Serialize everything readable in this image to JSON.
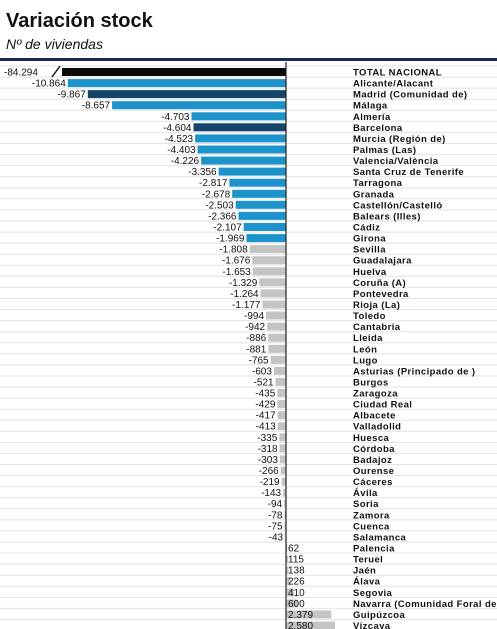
{
  "chart_data": {
    "type": "bar",
    "orientation": "horizontal",
    "title": "Variación stock",
    "subtitle": "Nº de viviendas",
    "categories": [
      "TOTAL NACIONAL",
      "Alicante/Alacant",
      "Madrid (Comunidad de)",
      "Málaga",
      "Almería",
      "Barcelona",
      "Murcia (Región de)",
      "Palmas (Las)",
      "Valencia/València",
      "Santa Cruz de Tenerife",
      "Tarragona",
      "Granada",
      "Castellón/Castelló",
      "Balears (Illes)",
      "Cádiz",
      "Girona",
      "Sevilla",
      "Guadalajara",
      "Huelva",
      "Coruña (A)",
      "Pontevedra",
      "Rioja (La)",
      "Toledo",
      "Cantabria",
      "Lleida",
      "León",
      "Lugo",
      "Asturias (Principado de )",
      "Burgos",
      "Zaragoza",
      "Ciudad Real",
      "Albacete",
      "Valladolid",
      "Huesca",
      "Córdoba",
      "Badajoz",
      "Ourense",
      "Cáceres",
      "Ávila",
      "Soria",
      "Zamora",
      "Cuenca",
      "Salamanca",
      "Palencia",
      "Teruel",
      "Jaén",
      "Álava",
      "Segovia",
      "Navarra (Comunidad Foral de)",
      "Guipúzcoa",
      "Vizcaya"
    ],
    "value_labels": [
      "-84.294",
      "-10.864",
      "-9.867",
      "-8.657",
      "-4.703",
      "-4.604",
      "-4.523",
      "-4.403",
      "-4.226",
      "-3.356",
      "-2.817",
      "-2.678",
      "-2.503",
      "-2.366",
      "-2.107",
      "-1.969",
      "-1.808",
      "-1.676",
      "-1.653",
      "-1.329",
      "-1.264",
      "-1.177",
      "-994",
      "-942",
      "-886",
      "-881",
      "-765",
      "-603",
      "-521",
      "-435",
      "-429",
      "-417",
      "-413",
      "-335",
      "-318",
      "-303",
      "-266",
      "-219",
      "-143",
      "-94",
      "-78",
      "-75",
      "-43",
      "62",
      "115",
      "138",
      "226",
      "410",
      "600",
      "2.379",
      "2.580"
    ],
    "values": [
      -84294,
      -10864,
      -9867,
      -8657,
      -4703,
      -4604,
      -4523,
      -4403,
      -4226,
      -3356,
      -2817,
      -2678,
      -2503,
      -2366,
      -2107,
      -1969,
      -1808,
      -1676,
      -1653,
      -1329,
      -1264,
      -1177,
      -994,
      -942,
      -886,
      -881,
      -765,
      -603,
      -521,
      -435,
      -429,
      -417,
      -413,
      -335,
      -318,
      -303,
      -266,
      -219,
      -143,
      -94,
      -78,
      -75,
      -43,
      62,
      115,
      138,
      226,
      410,
      600,
      2379,
      2580
    ],
    "axis_break": {
      "category": "TOTAL NACIONAL"
    },
    "xlim": [
      -11500,
      3000
    ],
    "colors": {
      "total": "#0a0a0a",
      "dark": "#16456b",
      "medium": "#1d93cc",
      "light": "#c4c4c4",
      "axis": "#222222",
      "rule": "#1b2a55"
    },
    "color_groups": [
      "total",
      "medium",
      "dark",
      "medium",
      "medium",
      "dark",
      "medium",
      "medium",
      "medium",
      "medium",
      "medium",
      "medium",
      "medium",
      "medium",
      "medium",
      "medium",
      "light",
      "light",
      "light",
      "light",
      "light",
      "light",
      "light",
      "light",
      "light",
      "light",
      "light",
      "light",
      "light",
      "light",
      "light",
      "light",
      "light",
      "light",
      "light",
      "light",
      "light",
      "light",
      "light",
      "light",
      "light",
      "light",
      "light",
      "light",
      "light",
      "light",
      "light",
      "light",
      "light",
      "light",
      "light"
    ],
    "grid": "horizontal",
    "legend": "none"
  }
}
